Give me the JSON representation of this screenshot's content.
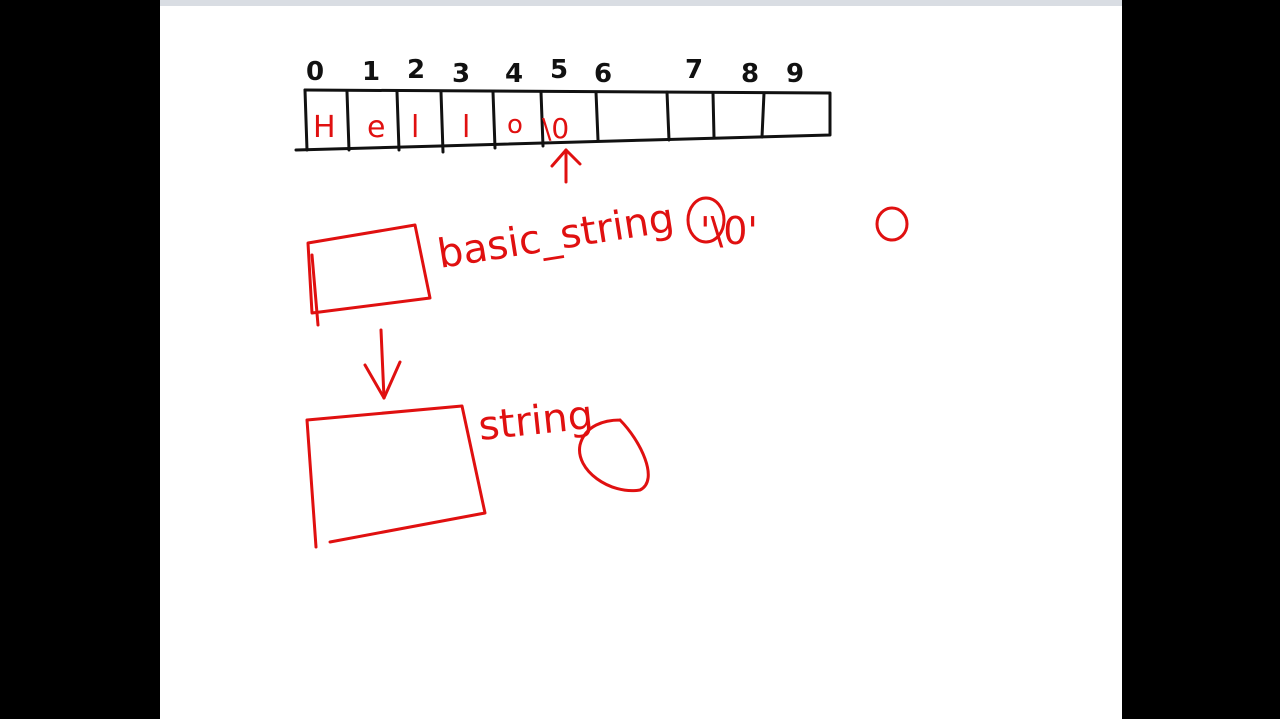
{
  "colors": {
    "background": "#000000",
    "canvas": "#ffffff",
    "black_ink": "#111111",
    "red_ink": "#e01010"
  },
  "array": {
    "indices": [
      "0",
      "1",
      "2",
      "3",
      "4",
      "5",
      "6",
      "7",
      "8",
      "9"
    ],
    "chars": [
      "H",
      "e",
      "l",
      "l",
      "o",
      "\\0",
      "",
      "",
      "",
      ""
    ]
  },
  "labels": {
    "basic_string": "basic_string",
    "null_char": "'\\0'",
    "zero": "0",
    "string": "string"
  }
}
